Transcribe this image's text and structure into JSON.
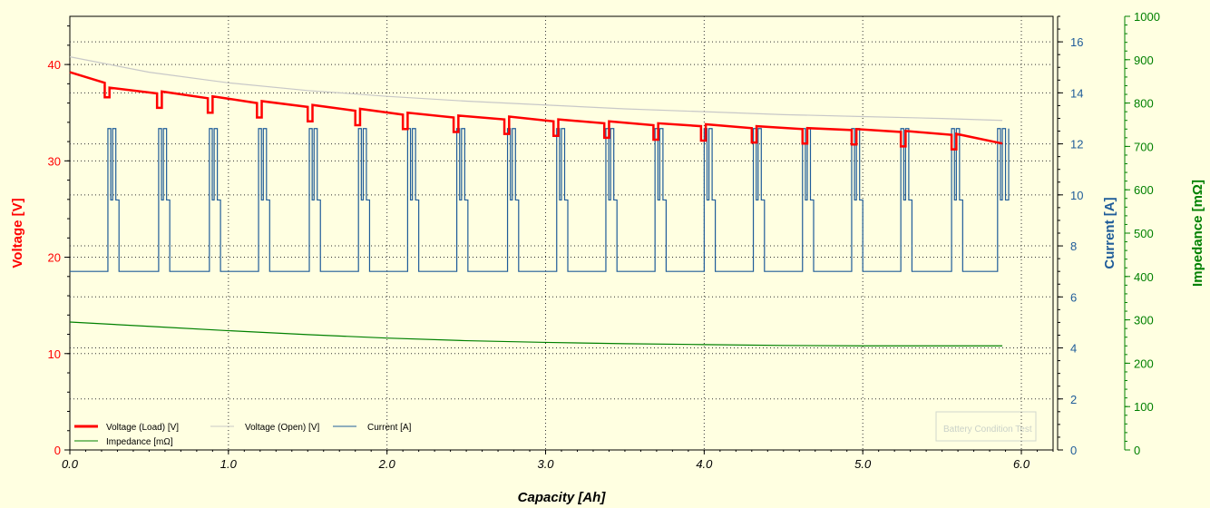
{
  "chart_data": {
    "type": "line",
    "xlabel": "Capacity [Ah]",
    "x_ticks": [
      "0.0",
      "1.0",
      "2.0",
      "3.0",
      "4.0",
      "5.0",
      "6.0"
    ],
    "xlim": [
      0,
      6.2
    ],
    "axes": {
      "voltage": {
        "label": "Voltage [V]",
        "range": [
          0,
          45
        ],
        "ticks": [
          "0",
          "10",
          "20",
          "30",
          "40"
        ],
        "color": "#ff0000"
      },
      "current": {
        "label": "Current [A]",
        "range": [
          0,
          17
        ],
        "ticks": [
          "0",
          "2",
          "4",
          "6",
          "8",
          "10",
          "12",
          "14",
          "16"
        ],
        "color": "#1f5c99"
      },
      "impedance": {
        "label": "Impedance [mΩ]",
        "range": [
          0,
          1000
        ],
        "ticks": [
          "0",
          "100",
          "200",
          "300",
          "400",
          "500",
          "600",
          "700",
          "800",
          "900",
          "1000"
        ],
        "color": "#008000"
      }
    },
    "grid": true,
    "legend_position": "bottom-left",
    "series": [
      {
        "name": "Voltage (Load) [V]",
        "axis": "voltage",
        "color": "#ff0000",
        "x": [
          0,
          0.22,
          0.25,
          0.55,
          0.58,
          0.87,
          0.9,
          1.18,
          1.21,
          1.5,
          1.53,
          1.8,
          1.83,
          2.1,
          2.13,
          2.42,
          2.45,
          2.74,
          2.77,
          3.05,
          3.08,
          3.37,
          3.4,
          3.68,
          3.71,
          3.98,
          4.01,
          4.3,
          4.33,
          4.62,
          4.65,
          4.93,
          4.96,
          5.24,
          5.27,
          5.56,
          5.59,
          5.88
        ],
        "y": [
          39.2,
          38.1,
          37.6,
          37.0,
          37.2,
          36.5,
          36.7,
          36.0,
          36.2,
          35.6,
          35.8,
          35.2,
          35.4,
          34.8,
          35.0,
          34.5,
          34.7,
          34.3,
          34.6,
          34.1,
          34.3,
          33.9,
          34.1,
          33.7,
          33.9,
          33.6,
          33.8,
          33.4,
          33.6,
          33.3,
          33.4,
          33.2,
          33.3,
          33.0,
          33.1,
          32.7,
          32.8,
          31.8
        ]
      },
      {
        "name": "Voltage (Open) [V]",
        "axis": "voltage",
        "color": "#c8c8c8",
        "x": [
          0,
          0.5,
          1.0,
          1.5,
          2.0,
          2.5,
          3.0,
          3.5,
          4.0,
          4.5,
          5.0,
          5.5,
          5.88
        ],
        "y": [
          40.8,
          39.2,
          38.1,
          37.3,
          36.7,
          36.2,
          35.8,
          35.4,
          35.1,
          34.8,
          34.6,
          34.4,
          34.2
        ]
      },
      {
        "name": "Current [A]",
        "axis": "current",
        "color": "#1f5c99",
        "pulses_start_x": [
          0.24,
          0.56,
          0.88,
          1.19,
          1.51,
          1.82,
          2.13,
          2.44,
          2.76,
          3.07,
          3.38,
          3.69,
          4.0,
          4.31,
          4.62,
          4.93,
          5.24,
          5.56,
          5.85
        ],
        "base_value": 7.0,
        "high_value": 12.6,
        "mid_value": 9.8
      },
      {
        "name": "Impedance [mΩ]",
        "axis": "impedance",
        "color": "#008000",
        "x": [
          0,
          0.5,
          1.0,
          1.5,
          2.0,
          2.5,
          3.0,
          3.5,
          4.0,
          4.5,
          5.0,
          5.5,
          5.88
        ],
        "y": [
          295,
          285,
          275,
          266,
          258,
          252,
          248,
          245,
          243,
          241,
          240,
          240,
          240
        ]
      }
    ],
    "watermark": "Battery Condition Test"
  }
}
